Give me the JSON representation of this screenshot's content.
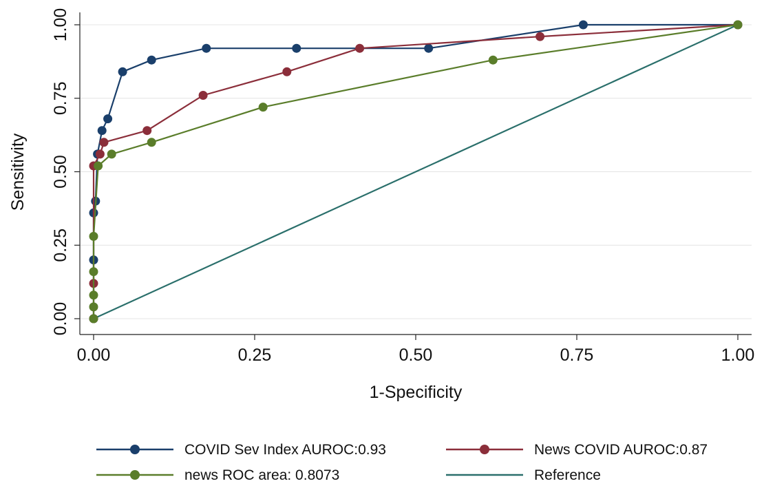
{
  "chart_data": {
    "type": "line",
    "title": "",
    "xlabel": "1-Specificity",
    "ylabel": "Sensitivity",
    "xlim": [
      0,
      1
    ],
    "ylim": [
      0,
      1
    ],
    "x_ticks": [
      "0.00",
      "0.25",
      "0.50",
      "0.75",
      "1.00"
    ],
    "y_ticks": [
      "0.00",
      "0.25",
      "0.50",
      "0.75",
      "1.00"
    ],
    "grid": true,
    "legend_position": "bottom",
    "series": [
      {
        "name": "COVID Sev Index AUROC:0.93",
        "color": "#1a3f6b",
        "markers": true,
        "x": [
          0,
          0,
          0,
          0.003,
          0.006,
          0.013,
          0.022,
          0.045,
          0.09,
          0.175,
          0.315,
          0.52,
          0.76,
          1
        ],
        "y": [
          0,
          0.2,
          0.36,
          0.4,
          0.56,
          0.64,
          0.68,
          0.84,
          0.88,
          0.92,
          0.92,
          0.92,
          1,
          1
        ]
      },
      {
        "name": "News COVID AUROC:0.87",
        "color": "#8b2e3a",
        "markers": true,
        "x": [
          0,
          0,
          0,
          0.01,
          0.016,
          0.083,
          0.17,
          0.3,
          0.413,
          0.693,
          1
        ],
        "y": [
          0,
          0.12,
          0.52,
          0.56,
          0.6,
          0.64,
          0.76,
          0.84,
          0.92,
          0.96,
          1
        ]
      },
      {
        "name": "news ROC area: 0.8073",
        "color": "#5a7d2a",
        "markers": true,
        "x": [
          0,
          0,
          0,
          0,
          0,
          0.007,
          0.028,
          0.09,
          0.263,
          0.62,
          1
        ],
        "y": [
          0,
          0.04,
          0.08,
          0.16,
          0.28,
          0.52,
          0.56,
          0.6,
          0.72,
          0.88,
          1
        ]
      },
      {
        "name": "Reference",
        "color": "#2a6f6b",
        "markers": false,
        "x": [
          0,
          1
        ],
        "y": [
          0,
          1
        ]
      }
    ]
  }
}
